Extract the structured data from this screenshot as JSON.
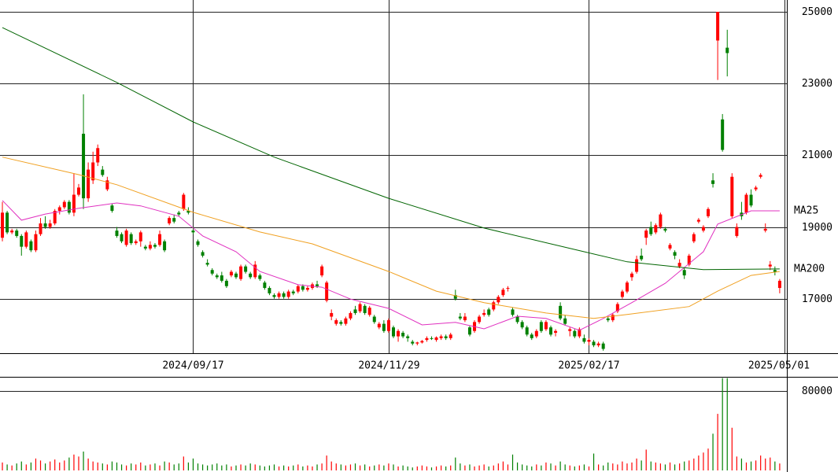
{
  "chart_data": {
    "type": "candlestick",
    "categories": [
      null,
      null,
      null,
      null,
      null,
      null,
      null,
      null,
      null,
      null,
      null,
      null,
      null,
      null,
      null,
      null,
      null,
      null,
      null,
      null,
      null,
      null,
      null,
      null,
      null,
      null,
      null,
      null,
      null,
      null,
      null,
      null,
      null,
      null,
      null,
      null,
      null,
      null,
      null,
      null,
      "2024/09/17",
      null,
      null,
      null,
      null,
      null,
      null,
      null,
      null,
      null,
      null,
      null,
      null,
      null,
      null,
      null,
      null,
      null,
      null,
      null,
      null,
      null,
      null,
      null,
      null,
      null,
      null,
      null,
      null,
      null,
      null,
      null,
      null,
      null,
      null,
      null,
      null,
      null,
      null,
      null,
      null,
      "2024/11/29",
      null,
      null,
      null,
      null,
      null,
      null,
      null,
      null,
      null,
      null,
      null,
      null,
      null,
      null,
      null,
      null,
      null,
      null,
      null,
      null,
      null,
      null,
      null,
      null,
      null,
      null,
      null,
      null,
      null,
      null,
      null,
      null,
      null,
      null,
      null,
      null,
      null,
      null,
      null,
      null,
      null,
      "2025/02/17",
      null,
      null,
      null,
      null,
      null,
      null,
      null,
      null,
      null,
      null,
      null,
      null,
      null,
      null,
      null,
      null,
      null,
      null,
      null,
      null,
      null,
      null,
      null,
      null,
      null,
      null,
      null,
      null,
      null,
      null,
      null,
      null,
      null,
      null,
      null,
      null,
      null,
      null,
      null,
      null,
      "2025/05/01"
    ],
    "ohlc": [
      [
        18700,
        19700,
        18600,
        19400
      ],
      [
        19400,
        19450,
        18800,
        18850
      ],
      [
        18850,
        18950,
        18800,
        18900
      ],
      [
        18900,
        18950,
        18700,
        18750
      ],
      [
        18750,
        18800,
        18200,
        18450
      ],
      [
        18450,
        18900,
        18400,
        18850
      ],
      [
        18600,
        18650,
        18300,
        18350
      ],
      [
        18350,
        18900,
        18300,
        18800
      ],
      [
        18800,
        19250,
        18750,
        19100
      ],
      [
        19100,
        19300,
        18950,
        19000
      ],
      [
        19000,
        19200,
        18950,
        19100
      ],
      [
        19100,
        19500,
        19050,
        19450
      ],
      [
        19450,
        19600,
        19350,
        19550
      ],
      [
        19550,
        19750,
        19500,
        19700
      ],
      [
        19700,
        19750,
        19350,
        19400
      ],
      [
        19400,
        20500,
        19300,
        19900
      ],
      [
        19900,
        20200,
        19850,
        20100
      ],
      [
        21600,
        22700,
        19500,
        19800
      ],
      [
        19800,
        20800,
        19700,
        20600
      ],
      [
        20300,
        21100,
        20200,
        20800
      ],
      [
        20800,
        21300,
        20700,
        21200
      ],
      [
        20600,
        20700,
        20400,
        20450
      ],
      [
        20050,
        20400,
        20000,
        20300
      ],
      [
        19600,
        19650,
        19400,
        19450
      ],
      [
        18900,
        19000,
        18700,
        18750
      ],
      [
        18800,
        18850,
        18550,
        18600
      ],
      [
        18500,
        18950,
        18450,
        18900
      ],
      [
        18800,
        18850,
        18500,
        18550
      ],
      [
        18550,
        18650,
        18500,
        18600
      ],
      [
        18600,
        18900,
        18450,
        18850
      ],
      [
        18450,
        18500,
        18350,
        18400
      ],
      [
        18400,
        18600,
        18350,
        18500
      ],
      [
        18500,
        18550,
        18400,
        18450
      ],
      [
        18500,
        18900,
        18450,
        18800
      ],
      [
        18600,
        18650,
        18300,
        18350
      ],
      [
        19100,
        19300,
        19050,
        19250
      ],
      [
        19250,
        19350,
        19100,
        19150
      ],
      [
        19400,
        19450,
        19300,
        19350
      ],
      [
        19500,
        19950,
        19450,
        19900
      ],
      [
        19450,
        19550,
        19350,
        19400
      ],
      [
        18900,
        19000,
        18800,
        18850
      ],
      [
        18600,
        18650,
        18450,
        18500
      ],
      [
        18300,
        18350,
        18150,
        18200
      ],
      [
        18000,
        18100,
        17900,
        17950
      ],
      [
        17800,
        17850,
        17650,
        17700
      ],
      [
        17650,
        17700,
        17550,
        17600
      ],
      [
        17650,
        17750,
        17450,
        17500
      ],
      [
        17500,
        17550,
        17300,
        17350
      ],
      [
        17650,
        17800,
        17600,
        17750
      ],
      [
        17700,
        17750,
        17550,
        17600
      ],
      [
        17550,
        17950,
        17500,
        17900
      ],
      [
        17900,
        17950,
        17700,
        17750
      ],
      [
        17700,
        17750,
        17550,
        17600
      ],
      [
        17600,
        18050,
        17550,
        17950
      ],
      [
        17650,
        17700,
        17500,
        17550
      ],
      [
        17450,
        17500,
        17250,
        17300
      ],
      [
        17300,
        17350,
        17100,
        17150
      ],
      [
        17100,
        17150,
        17000,
        17050
      ],
      [
        17050,
        17200,
        17000,
        17150
      ],
      [
        17150,
        17200,
        17000,
        17050
      ],
      [
        17050,
        17250,
        17000,
        17200
      ],
      [
        17200,
        17250,
        17100,
        17150
      ],
      [
        17200,
        17400,
        17150,
        17350
      ],
      [
        17350,
        17400,
        17200,
        17250
      ],
      [
        17250,
        17350,
        17200,
        17300
      ],
      [
        17300,
        17450,
        17250,
        17400
      ],
      [
        17400,
        17500,
        17300,
        17350
      ],
      [
        17650,
        17950,
        17600,
        17900
      ],
      [
        16950,
        17500,
        16900,
        17450
      ],
      [
        16500,
        16700,
        16400,
        16600
      ],
      [
        16300,
        16450,
        16250,
        16400
      ],
      [
        16350,
        16400,
        16250,
        16300
      ],
      [
        16300,
        16500,
        16250,
        16450
      ],
      [
        16450,
        16650,
        16400,
        16600
      ],
      [
        16700,
        16800,
        16550,
        16600
      ],
      [
        16650,
        16900,
        16600,
        16850
      ],
      [
        16800,
        16850,
        16550,
        16600
      ],
      [
        16550,
        16800,
        16500,
        16750
      ],
      [
        16500,
        16550,
        16300,
        16350
      ],
      [
        16200,
        16350,
        16150,
        16300
      ],
      [
        16300,
        16400,
        16050,
        16100
      ],
      [
        16100,
        16450,
        16050,
        16400
      ],
      [
        16200,
        16250,
        15900,
        15950
      ],
      [
        15950,
        16150,
        15800,
        16100
      ],
      [
        16050,
        16100,
        15900,
        15950
      ],
      [
        15950,
        16000,
        15800,
        15900
      ],
      [
        15800,
        15850,
        15700,
        15750
      ],
      [
        15750,
        15800,
        15700,
        15780
      ],
      [
        15780,
        15850,
        15750,
        15820
      ],
      [
        15850,
        15950,
        15800,
        15900
      ],
      [
        15900,
        15950,
        15850,
        15880
      ],
      [
        15850,
        15950,
        15800,
        15920
      ],
      [
        15900,
        16000,
        15850,
        15950
      ],
      [
        15950,
        16000,
        15850,
        15900
      ],
      [
        15900,
        16050,
        15850,
        16000
      ],
      [
        17100,
        17250,
        16950,
        17000
      ],
      [
        16500,
        16600,
        16400,
        16450
      ],
      [
        16400,
        16600,
        16350,
        16500
      ],
      [
        16200,
        16250,
        15950,
        16000
      ],
      [
        16100,
        16400,
        16050,
        16350
      ],
      [
        16350,
        16550,
        16300,
        16500
      ],
      [
        16550,
        16700,
        16500,
        16600
      ],
      [
        16700,
        16750,
        16500,
        16550
      ],
      [
        16700,
        16950,
        16650,
        16900
      ],
      [
        16900,
        17100,
        16850,
        17050
      ],
      [
        17100,
        17300,
        17050,
        17250
      ],
      [
        17300,
        17350,
        17200,
        17300
      ],
      [
        16700,
        16750,
        16500,
        16550
      ],
      [
        16500,
        16550,
        16300,
        16350
      ],
      [
        16350,
        16400,
        16150,
        16200
      ],
      [
        16200,
        16250,
        15950,
        16000
      ],
      [
        16000,
        16050,
        15850,
        15900
      ],
      [
        15950,
        16150,
        15900,
        16100
      ],
      [
        16350,
        16400,
        16050,
        16100
      ],
      [
        16150,
        16400,
        16100,
        16350
      ],
      [
        16200,
        16250,
        15950,
        16000
      ],
      [
        16050,
        16150,
        15950,
        16100
      ],
      [
        16800,
        16900,
        16400,
        16450
      ],
      [
        16450,
        16550,
        16250,
        16300
      ],
      [
        16100,
        16200,
        15950,
        16150
      ],
      [
        16100,
        16150,
        15900,
        15950
      ],
      [
        15950,
        16200,
        15900,
        16150
      ],
      [
        15900,
        16000,
        15750,
        15800
      ],
      [
        15800,
        15900,
        15700,
        15850
      ],
      [
        15800,
        15850,
        15650,
        15700
      ],
      [
        15700,
        15800,
        15650,
        15750
      ],
      [
        15750,
        15800,
        15550,
        15600
      ],
      [
        16450,
        16500,
        16350,
        16400
      ],
      [
        16400,
        16600,
        16350,
        16550
      ],
      [
        16650,
        16900,
        16600,
        16850
      ],
      [
        17050,
        17250,
        17000,
        17200
      ],
      [
        17200,
        17500,
        17150,
        17450
      ],
      [
        17600,
        17750,
        17500,
        17700
      ],
      [
        17750,
        18200,
        17700,
        18100
      ],
      [
        18200,
        18400,
        18050,
        18100
      ],
      [
        18700,
        18950,
        18500,
        18900
      ],
      [
        19000,
        19150,
        18750,
        18800
      ],
      [
        18850,
        19100,
        18800,
        19050
      ],
      [
        19000,
        19400,
        18950,
        19350
      ],
      [
        18950,
        19000,
        18850,
        18900
      ],
      [
        18400,
        18550,
        18350,
        18500
      ],
      [
        18300,
        18350,
        18100,
        18200
      ],
      [
        17900,
        18100,
        17850,
        18000
      ],
      [
        17800,
        17850,
        17550,
        17650
      ],
      [
        17950,
        18250,
        17900,
        18200
      ],
      [
        18600,
        18850,
        18550,
        18800
      ],
      [
        19150,
        19250,
        19100,
        19200
      ],
      [
        18900,
        19050,
        18850,
        19000
      ],
      [
        19300,
        19550,
        19250,
        19500
      ],
      [
        20300,
        20500,
        20100,
        20200
      ],
      [
        24200,
        25000,
        23100,
        25000
      ],
      [
        22000,
        22150,
        21100,
        21150
      ],
      [
        24000,
        24500,
        23200,
        23850
      ],
      [
        19300,
        20500,
        19250,
        20400
      ],
      [
        18750,
        19100,
        18700,
        19000
      ],
      [
        19400,
        19700,
        19200,
        19300
      ],
      [
        19400,
        19950,
        19350,
        19900
      ],
      [
        19900,
        20050,
        19550,
        19600
      ],
      [
        20050,
        20150,
        20000,
        20100
      ],
      [
        20400,
        20500,
        20350,
        20450
      ],
      [
        18900,
        19100,
        18850,
        18950
      ],
      [
        17900,
        18050,
        17800,
        17950
      ],
      [
        17800,
        17900,
        17650,
        17750
      ],
      [
        17300,
        17550,
        17150,
        17500
      ]
    ],
    "up_color": "#ff0000",
    "down_color": "#008000",
    "ylim": [
      15480,
      25330
    ],
    "yticks": [
      17000,
      19000,
      21000,
      23000,
      25000
    ],
    "grid": true,
    "lines": [
      {
        "name": "MA25",
        "color": "#e030c0",
        "x": [
          0,
          4,
          9,
          16,
          24,
          29,
          37,
          42,
          49,
          54,
          62,
          67,
          73,
          81,
          88,
          95,
          101,
          108,
          114,
          121,
          126,
          132,
          139,
          147,
          150,
          157,
          163
        ],
        "values": [
          19740,
          19190,
          19360,
          19520,
          19670,
          19590,
          19300,
          18750,
          18310,
          17760,
          17390,
          17320,
          16990,
          16730,
          16270,
          16340,
          16160,
          16510,
          16450,
          16120,
          16450,
          16890,
          17430,
          18310,
          19080,
          19450,
          19450
        ]
      },
      {
        "color": "#f0a020",
        "x": [
          0,
          16,
          24,
          40,
          54,
          65,
          81,
          91,
          101,
          114,
          124,
          131,
          144,
          150,
          157,
          163
        ],
        "values": [
          20950,
          20460,
          20180,
          19410,
          18860,
          18530,
          17760,
          17210,
          16890,
          16600,
          16450,
          16560,
          16780,
          17210,
          17650,
          17760
        ]
      },
      {
        "name": "MA200",
        "color": "#006400",
        "x": [
          0,
          24,
          40,
          57,
          81,
          101,
          122,
          131,
          147,
          163
        ],
        "values": [
          24560,
          23030,
          21930,
          20950,
          19800,
          18970,
          18310,
          18030,
          17810,
          17830
        ]
      }
    ],
    "volume": {
      "ylim": [
        0,
        93500
      ],
      "yticks": [
        80000
      ],
      "values": [
        8000,
        6000,
        5000,
        7000,
        9000,
        6000,
        8000,
        12000,
        10000,
        7000,
        9000,
        11000,
        8000,
        10000,
        13000,
        16000,
        14000,
        19000,
        12000,
        9000,
        8000,
        7000,
        6000,
        9000,
        8000,
        6000,
        5000,
        7000,
        6000,
        8000,
        5000,
        6000,
        7000,
        5000,
        9000,
        8000,
        6000,
        7000,
        14000,
        8000,
        12000,
        7000,
        6000,
        5000,
        6000,
        7000,
        5000,
        6000,
        4000,
        5000,
        6000,
        5000,
        7000,
        6000,
        5000,
        4000,
        5000,
        6000,
        4000,
        5000,
        4000,
        5000,
        6000,
        4000,
        5000,
        4000,
        6000,
        7000,
        15000,
        9000,
        7000,
        6000,
        5000,
        6000,
        7000,
        5000,
        6000,
        4000,
        5000,
        6000,
        5000,
        7000,
        6000,
        4000,
        5000,
        4000,
        3000,
        4000,
        5000,
        4000,
        3000,
        4000,
        5000,
        4000,
        5000,
        13000,
        7000,
        5000,
        6000,
        4000,
        5000,
        6000,
        4000,
        5000,
        7000,
        9000,
        6000,
        16000,
        8000,
        6000,
        5000,
        4000,
        6000,
        5000,
        8000,
        7000,
        5000,
        9000,
        6000,
        5000,
        4000,
        5000,
        6000,
        4000,
        17000,
        6000,
        5000,
        8000,
        7000,
        6000,
        9000,
        7000,
        8000,
        12000,
        10000,
        21000,
        9000,
        8000,
        7000,
        6000,
        8000,
        6000,
        7000,
        9000,
        10000,
        12000,
        15000,
        18000,
        22000,
        37000,
        57000,
        93000,
        93000,
        43000,
        14000,
        12000,
        8000,
        9000,
        10000,
        15000,
        12000,
        13000,
        9000,
        7000
      ]
    }
  }
}
